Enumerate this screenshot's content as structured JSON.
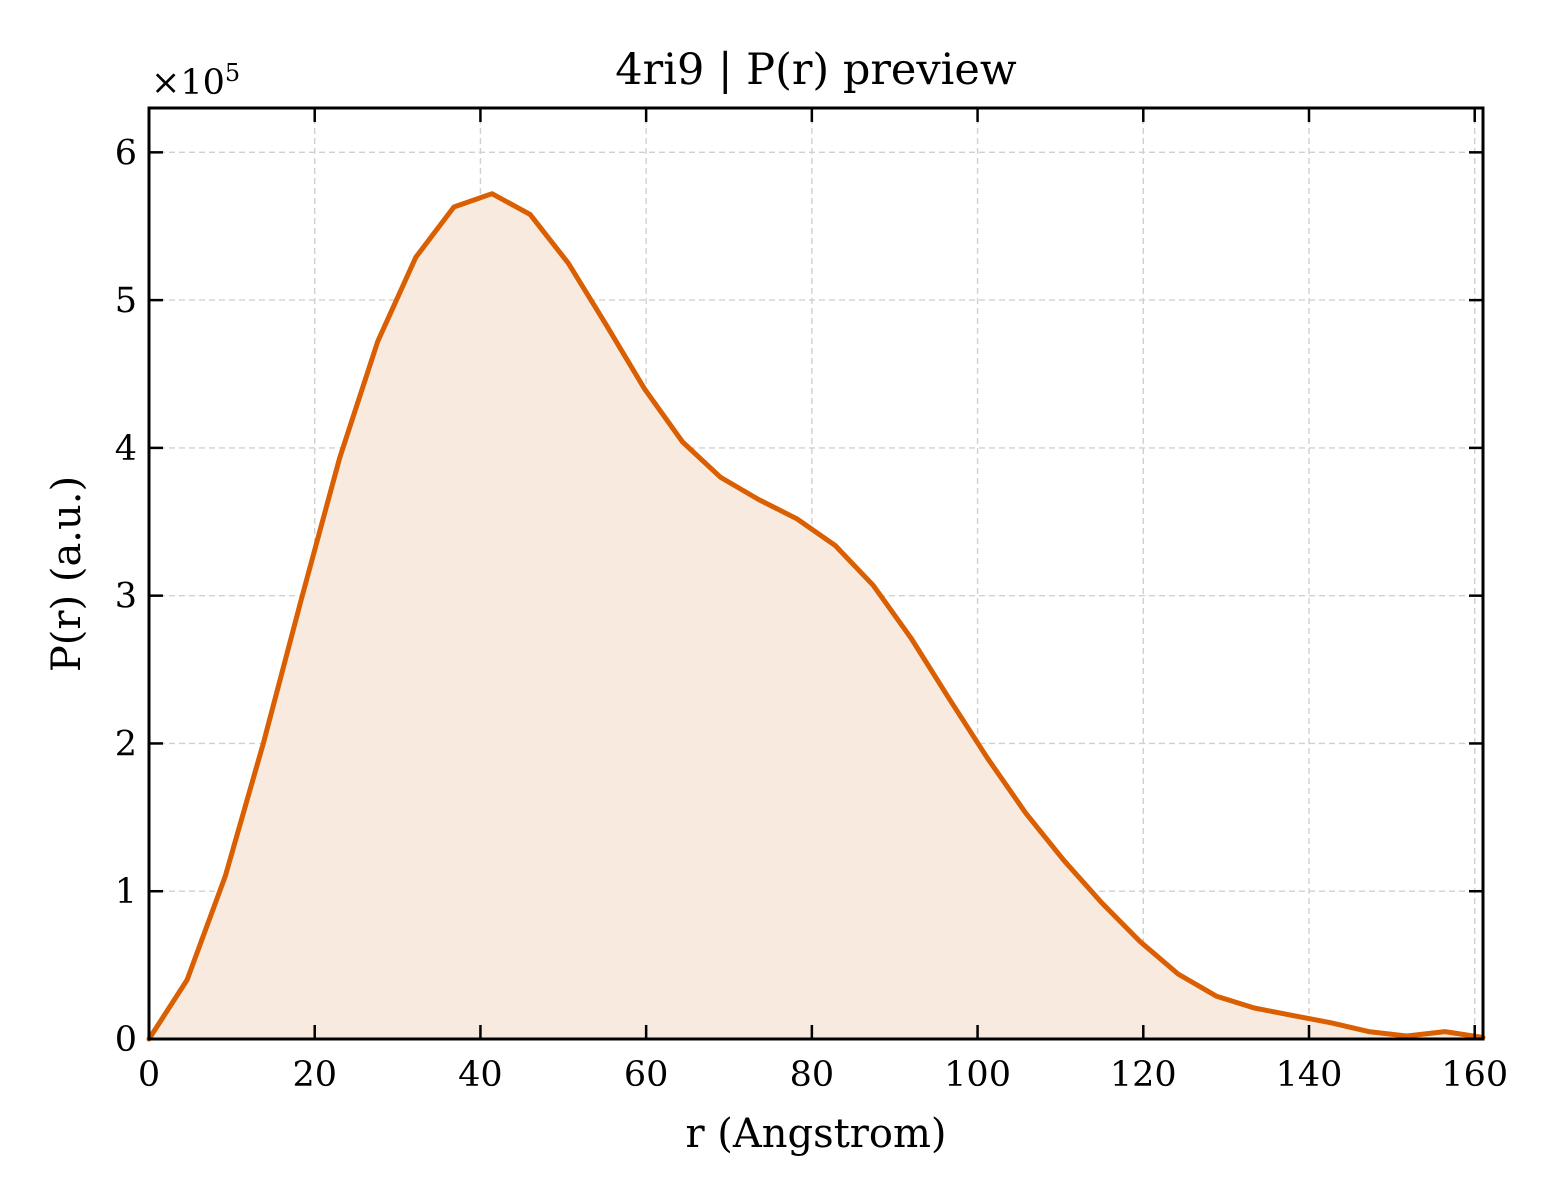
{
  "chart_data": {
    "type": "area",
    "title": "4ri9 | P(r) preview",
    "xlabel": "r (Angstrom)",
    "ylabel": "P(r) (a.u.)",
    "y_multiplier_label": "×10",
    "y_multiplier_exponent": "5",
    "xlim": [
      0,
      161
    ],
    "ylim": [
      0,
      6.3
    ],
    "xticks": [
      0,
      20,
      40,
      60,
      80,
      100,
      120,
      140,
      160
    ],
    "yticks": [
      0,
      1,
      2,
      3,
      4,
      5,
      6
    ],
    "grid": true,
    "series": [
      {
        "color": "#d95f02",
        "fill": "#f9eadf",
        "x": [
          0,
          4.6,
          9.2,
          13.8,
          18.4,
          23.0,
          27.6,
          32.2,
          36.8,
          41.4,
          46.0,
          50.6,
          55.2,
          59.8,
          64.4,
          69.0,
          73.6,
          78.2,
          82.8,
          87.4,
          92.0,
          96.6,
          101.2,
          105.8,
          110.4,
          115.0,
          119.6,
          124.2,
          128.8,
          133.4,
          138.0,
          142.6,
          147.2,
          151.8,
          156.4,
          161.0
        ],
        "y": [
          0.0,
          0.4,
          1.1,
          2.0,
          2.98,
          3.93,
          4.72,
          5.29,
          5.63,
          5.72,
          5.58,
          5.25,
          4.83,
          4.4,
          4.04,
          3.8,
          3.65,
          3.52,
          3.34,
          3.07,
          2.71,
          2.3,
          1.9,
          1.53,
          1.21,
          0.92,
          0.66,
          0.44,
          0.29,
          0.21,
          0.16,
          0.11,
          0.05,
          0.02,
          0.05,
          0.01
        ]
      }
    ]
  }
}
